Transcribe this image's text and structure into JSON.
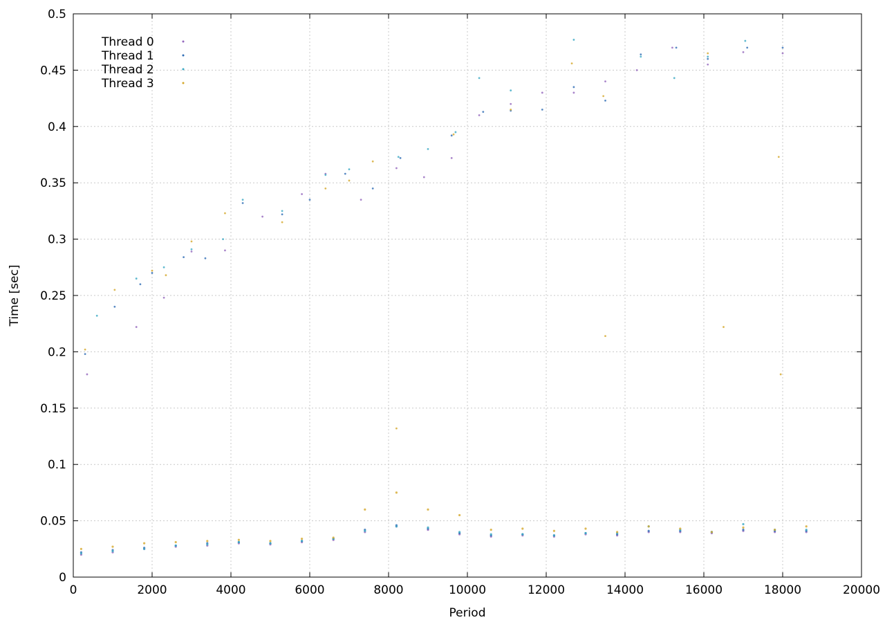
{
  "chart_data": {
    "type": "scatter",
    "title": "",
    "xlabel": "Period",
    "ylabel": "Time [sec]",
    "xlim": [
      0,
      20000
    ],
    "ylim": [
      0,
      0.5
    ],
    "xticks": [
      0,
      2000,
      4000,
      6000,
      8000,
      10000,
      12000,
      14000,
      16000,
      18000,
      20000
    ],
    "yticks": [
      0,
      0.05,
      0.1,
      0.15,
      0.2,
      0.25,
      0.3,
      0.35,
      0.4,
      0.45,
      0.5
    ],
    "xtick_labels": [
      "0",
      "2000",
      "4000",
      "6000",
      "8000",
      "10000",
      "12000",
      "14000",
      "16000",
      "18000",
      "20000"
    ],
    "ytick_labels": [
      "0",
      "0.05",
      "0.1",
      "0.15",
      "0.2",
      "0.25",
      "0.3",
      "0.35",
      "0.4",
      "0.45",
      "0.5"
    ],
    "grid": true,
    "legend_position": "top-left",
    "series": [
      {
        "name": "Thread 0",
        "color": "#9467bd",
        "x": [
          200,
          1000,
          1800,
          2600,
          3400,
          4200,
          5000,
          5800,
          6600,
          7400,
          8200,
          9000,
          9800,
          10600,
          11400,
          12200,
          13000,
          13800,
          14600,
          15400,
          16200,
          17000,
          17800,
          18600
        ],
        "y": [
          0.02,
          0.022,
          0.025,
          0.027,
          0.028,
          0.03,
          0.029,
          0.031,
          0.033,
          0.04,
          0.045,
          0.042,
          0.038,
          0.036,
          0.037,
          0.036,
          0.038,
          0.037,
          0.04,
          0.04,
          0.039,
          0.041,
          0.04,
          0.04
        ],
        "outliers_x": [
          350,
          1600,
          2300,
          3000,
          3850,
          4800,
          5800,
          6400,
          7300,
          8200,
          8900,
          9600,
          10300,
          11100,
          11900,
          12700,
          13500,
          14300,
          15200,
          16100,
          17000,
          18000
        ],
        "outliers_y": [
          0.18,
          0.222,
          0.248,
          0.289,
          0.29,
          0.32,
          0.34,
          0.358,
          0.335,
          0.363,
          0.355,
          0.372,
          0.41,
          0.42,
          0.43,
          0.43,
          0.44,
          0.45,
          0.47,
          0.455,
          0.466,
          0.465
        ]
      },
      {
        "name": "Thread 1",
        "color": "#2f6db5",
        "x": [
          200,
          1000,
          1800,
          2600,
          3400,
          4200,
          5000,
          5800,
          6600,
          7400,
          8200,
          9000,
          9800,
          10600,
          11400,
          12200,
          13000,
          13800,
          14600,
          15400,
          16200,
          17000,
          17800,
          18600
        ],
        "y": [
          0.022,
          0.024,
          0.026,
          0.028,
          0.03,
          0.031,
          0.03,
          0.032,
          0.034,
          0.042,
          0.046,
          0.043,
          0.039,
          0.037,
          0.038,
          0.037,
          0.039,
          0.038,
          0.041,
          0.041,
          0.04,
          0.042,
          0.041,
          0.041
        ],
        "outliers_x": [
          300,
          1050,
          1700,
          2000,
          2800,
          3350,
          4300,
          5300,
          6000,
          6900,
          7600,
          8300,
          9600,
          10400,
          11100,
          11900,
          12700,
          13500,
          14400,
          15300,
          16100,
          17100,
          18000
        ],
        "outliers_y": [
          0.198,
          0.24,
          0.26,
          0.27,
          0.284,
          0.283,
          0.332,
          0.322,
          0.335,
          0.358,
          0.345,
          0.372,
          0.392,
          0.413,
          0.414,
          0.415,
          0.435,
          0.423,
          0.464,
          0.47,
          0.46,
          0.47,
          0.47
        ]
      },
      {
        "name": "Thread 2",
        "color": "#3aa9c4",
        "x": [
          200,
          1000,
          1800,
          2600,
          3400,
          4200,
          5000,
          5800,
          6600,
          7400,
          8200,
          9000,
          9800,
          10600,
          11400,
          12200,
          13000,
          13800,
          14600,
          15400,
          16200,
          17000,
          17800,
          18600
        ],
        "y": [
          0.021,
          0.023,
          0.025,
          0.028,
          0.029,
          0.031,
          0.03,
          0.032,
          0.034,
          0.041,
          0.045,
          0.044,
          0.04,
          0.038,
          0.038,
          0.037,
          0.039,
          0.039,
          0.045,
          0.042,
          0.04,
          0.047,
          0.042,
          0.042
        ],
        "outliers_x": [
          600,
          1600,
          2300,
          3000,
          3800,
          4300,
          5300,
          6400,
          7000,
          8250,
          9000,
          9700,
          10300,
          11100,
          12700,
          14400,
          15250,
          16100,
          17050
        ],
        "outliers_y": [
          0.232,
          0.265,
          0.275,
          0.291,
          0.3,
          0.335,
          0.325,
          0.357,
          0.362,
          0.373,
          0.38,
          0.395,
          0.443,
          0.432,
          0.477,
          0.462,
          0.443,
          0.462,
          0.476
        ]
      },
      {
        "name": "Thread 3",
        "color": "#d4a82a",
        "x": [
          200,
          1000,
          1800,
          2600,
          3400,
          4200,
          5000,
          5800,
          6600,
          7400,
          8200,
          9000,
          9800,
          10600,
          11400,
          12200,
          13000,
          13800,
          14600,
          15400,
          16200,
          17000,
          17800,
          18600
        ],
        "y": [
          0.025,
          0.027,
          0.03,
          0.031,
          0.032,
          0.033,
          0.032,
          0.034,
          0.035,
          0.06,
          0.075,
          0.06,
          0.055,
          0.042,
          0.043,
          0.041,
          0.043,
          0.04,
          0.045,
          0.043,
          0.04,
          0.044,
          0.042,
          0.045
        ],
        "outliers_x": [
          300,
          1050,
          2000,
          2350,
          3000,
          3850,
          5300,
          6400,
          7000,
          7600,
          8200,
          9650,
          11100,
          12650,
          13450,
          13500,
          16100,
          16500,
          17900,
          17950
        ],
        "outliers_y": [
          0.202,
          0.255,
          0.272,
          0.268,
          0.298,
          0.323,
          0.315,
          0.345,
          0.352,
          0.369,
          0.132,
          0.393,
          0.415,
          0.456,
          0.427,
          0.214,
          0.465,
          0.222,
          0.373,
          0.18
        ]
      }
    ]
  }
}
